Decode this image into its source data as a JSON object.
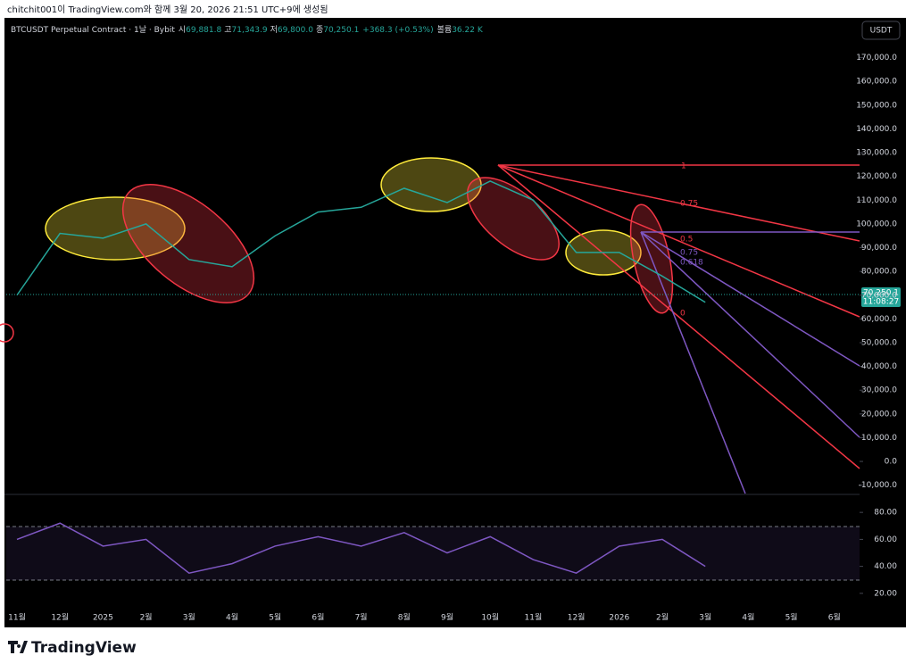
{
  "header": {
    "caption": "chitchit001이 TradingView.com와 함께 3월 20, 2026 21:51 UTC+9에 생성됨",
    "symbol": "BTCUSDT Perpetual Contract · 1날 · Bybit",
    "open_label": "시",
    "open": "69,881.8",
    "high_label": "고",
    "high": "71,343.9",
    "low_label": "저",
    "low": "69,800.0",
    "close_label": "종",
    "close": "70,250.1",
    "change": "+368.3 (+0.53%)",
    "volume_label": "볼륨",
    "volume": "36.22 K",
    "currency": "USDT"
  },
  "price_tag": {
    "price": "70,250.1",
    "countdown": "11:08:27"
  },
  "fan_labels": [
    "1",
    "0.75",
    "0.5",
    "0.75",
    "0.618",
    "0"
  ],
  "footer": {
    "logo": "TradingView"
  },
  "chart_data": [
    {
      "type": "line",
      "color": "#26a69a",
      "categories": [
        "11월",
        "12월",
        "2025",
        "2월",
        "3월",
        "4월",
        "5월",
        "6월",
        "7월",
        "8월",
        "9월",
        "10월",
        "11월",
        "12월",
        "2026",
        "2월",
        "3월",
        "4월",
        "5월",
        "6월"
      ],
      "values": [
        70000,
        96000,
        94000,
        100000,
        85000,
        82000,
        95000,
        105000,
        107000,
        115000,
        109000,
        118000,
        110000,
        88000,
        88000,
        78000,
        67000,
        null,
        null,
        null
      ],
      "ylim": [
        -13500,
        186000
      ],
      "yticks": [
        {
          "value": 170000,
          "label": "170,000.0"
        },
        {
          "value": 160000,
          "label": "160,000.0"
        },
        {
          "value": 150000,
          "label": "150,000.0"
        },
        {
          "value": 140000,
          "label": "140,000.0"
        },
        {
          "value": 130000,
          "label": "130,000.0"
        },
        {
          "value": 120000,
          "label": "120,000.0"
        },
        {
          "value": 110000,
          "label": "110,000.0"
        },
        {
          "value": 100000,
          "label": "100,000.0"
        },
        {
          "value": 90000,
          "label": "90,000.0"
        },
        {
          "value": 80000,
          "label": "80,000.0"
        },
        {
          "value": 70000,
          "label": "70,000.0"
        },
        {
          "value": 60000,
          "label": "60,000.0"
        },
        {
          "value": 50000,
          "label": "50,000.0"
        },
        {
          "value": 40000,
          "label": "40,000.0"
        },
        {
          "value": 30000,
          "label": "30,000.0"
        },
        {
          "value": 20000,
          "label": "20,000.0"
        },
        {
          "value": 10000,
          "label": "10,000.0"
        },
        {
          "value": 0,
          "label": "0.0"
        },
        {
          "value": -10000,
          "label": "-10,000.0"
        }
      ]
    },
    {
      "type": "line",
      "color": "#7e57c2",
      "values": [
        60,
        72,
        55,
        60,
        35,
        42,
        55,
        62,
        55,
        65,
        50,
        62,
        45,
        35,
        55,
        60,
        40,
        null,
        null,
        null
      ],
      "ylim": [
        10,
        92
      ],
      "yticks": [
        {
          "value": 80,
          "label": "80.00"
        },
        {
          "value": 60,
          "label": "60.00"
        },
        {
          "value": 40,
          "label": "40.00"
        },
        {
          "value": 20,
          "label": "20.00"
        }
      ]
    }
  ]
}
